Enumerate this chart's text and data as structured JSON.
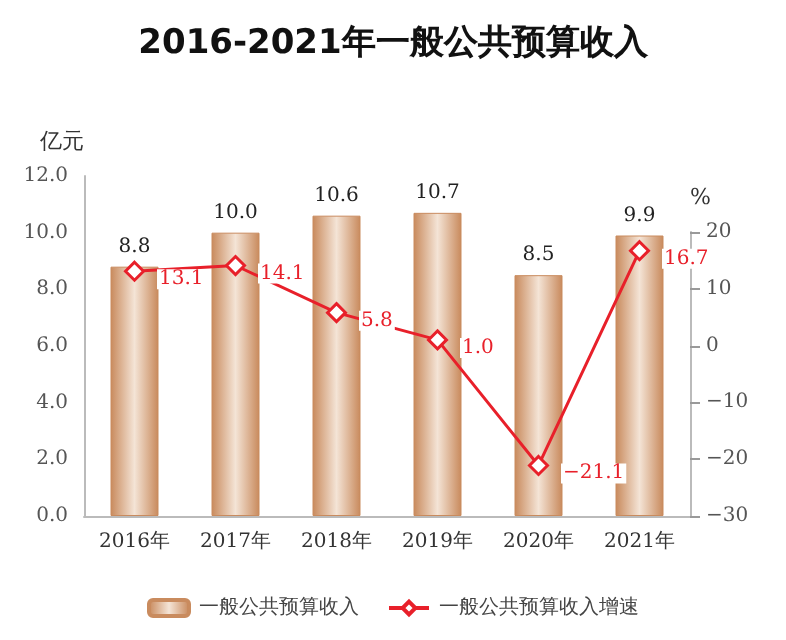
{
  "chart_data": {
    "type": "bar",
    "title": "2016-2021年一般公共预算收入",
    "ylabel": "亿元",
    "y2label": "%",
    "categories": [
      "2016年",
      "2017年",
      "2018年",
      "2019年",
      "2020年",
      "2021年"
    ],
    "series": [
      {
        "name": "一般公共预算收入",
        "color": "#c98b5e",
        "values": [
          8.8,
          10.0,
          10.6,
          10.7,
          8.5,
          9.9
        ],
        "value_labels": [
          "8.8",
          "10.0",
          "10.6",
          "10.7",
          "8.5",
          "9.9"
        ]
      },
      {
        "name": "一般公共预算收入增速",
        "type": "line",
        "axis": "y2",
        "color": "#e8202a",
        "marker": "diamond",
        "values": [
          13.1,
          14.1,
          5.8,
          1.0,
          -21.1,
          16.7
        ],
        "value_labels": [
          "13.1",
          "14.1",
          "5.8",
          "1.0",
          "−21.1",
          "16.7"
        ]
      }
    ],
    "ylim": [
      0,
      12
    ],
    "yticks": [
      {
        "value": 0,
        "label": "0.0"
      },
      {
        "value": 2,
        "label": "2.0"
      },
      {
        "value": 4,
        "label": "4.0"
      },
      {
        "value": 6,
        "label": "6.0"
      },
      {
        "value": 8,
        "label": "8.0"
      },
      {
        "value": 10,
        "label": "10.0"
      },
      {
        "value": 12,
        "label": "12.0"
      }
    ],
    "y2lim": [
      -30,
      20
    ],
    "y2ticks": [
      {
        "value": -30,
        "label": "−30"
      },
      {
        "value": -20,
        "label": "−20"
      },
      {
        "value": -10,
        "label": "−10"
      },
      0,
      10,
      20
    ],
    "grid": false,
    "legend": "bottom"
  }
}
